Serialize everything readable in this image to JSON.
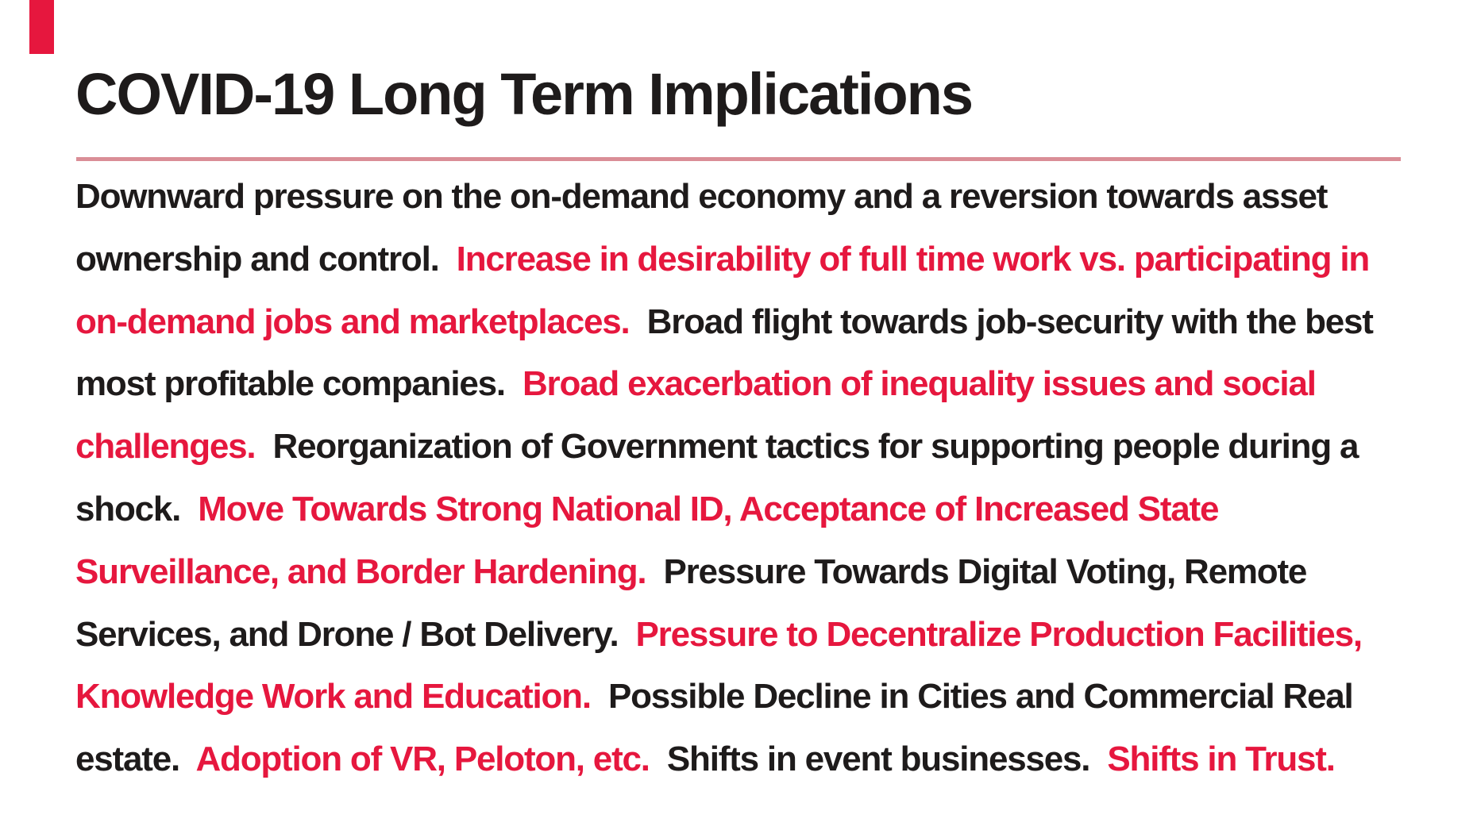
{
  "colors": {
    "background": "#ffffff",
    "black": "#1e1b1b",
    "red": "#e6173e",
    "divider_pink": "#da8e97"
  },
  "decor": {
    "top_left_bar_color": "#e6173e"
  },
  "title": {
    "text": "COVID-19 Long Term Implications"
  },
  "paragraph": {
    "segments": [
      {
        "color_role": "black",
        "text": "Downward pressure on the on-demand economy and a reversion towards asset ownership and control.  "
      },
      {
        "color_role": "red",
        "text": "Increase in desirability of full time work vs. participating in on-demand jobs and marketplaces.  "
      },
      {
        "color_role": "black",
        "text": "Broad flight towards job-security with the best most profitable companies.  "
      },
      {
        "color_role": "red",
        "text": "Broad exacerbation of inequality issues and social challenges.  "
      },
      {
        "color_role": "black",
        "text": "Reorganization of Government tactics for supporting people during a shock.  "
      },
      {
        "color_role": "red",
        "text": "Move Towards Strong National ID, Acceptance of Increased State Surveillance, and Border Hardening.  "
      },
      {
        "color_role": "black",
        "text": "Pressure Towards Digital Voting, Remote Services, and Drone / Bot Delivery.  "
      },
      {
        "color_role": "red",
        "text": "Pressure to Decentralize Production Facilities, Knowledge Work and Education.  "
      },
      {
        "color_role": "black",
        "text": "Possible Decline in Cities and Commercial Real estate.  "
      },
      {
        "color_role": "red",
        "text": "Adoption of VR, Peloton, etc.  "
      },
      {
        "color_role": "black",
        "text": "Shifts in event businesses.  "
      },
      {
        "color_role": "red",
        "text": "Shifts in Trust."
      }
    ]
  }
}
